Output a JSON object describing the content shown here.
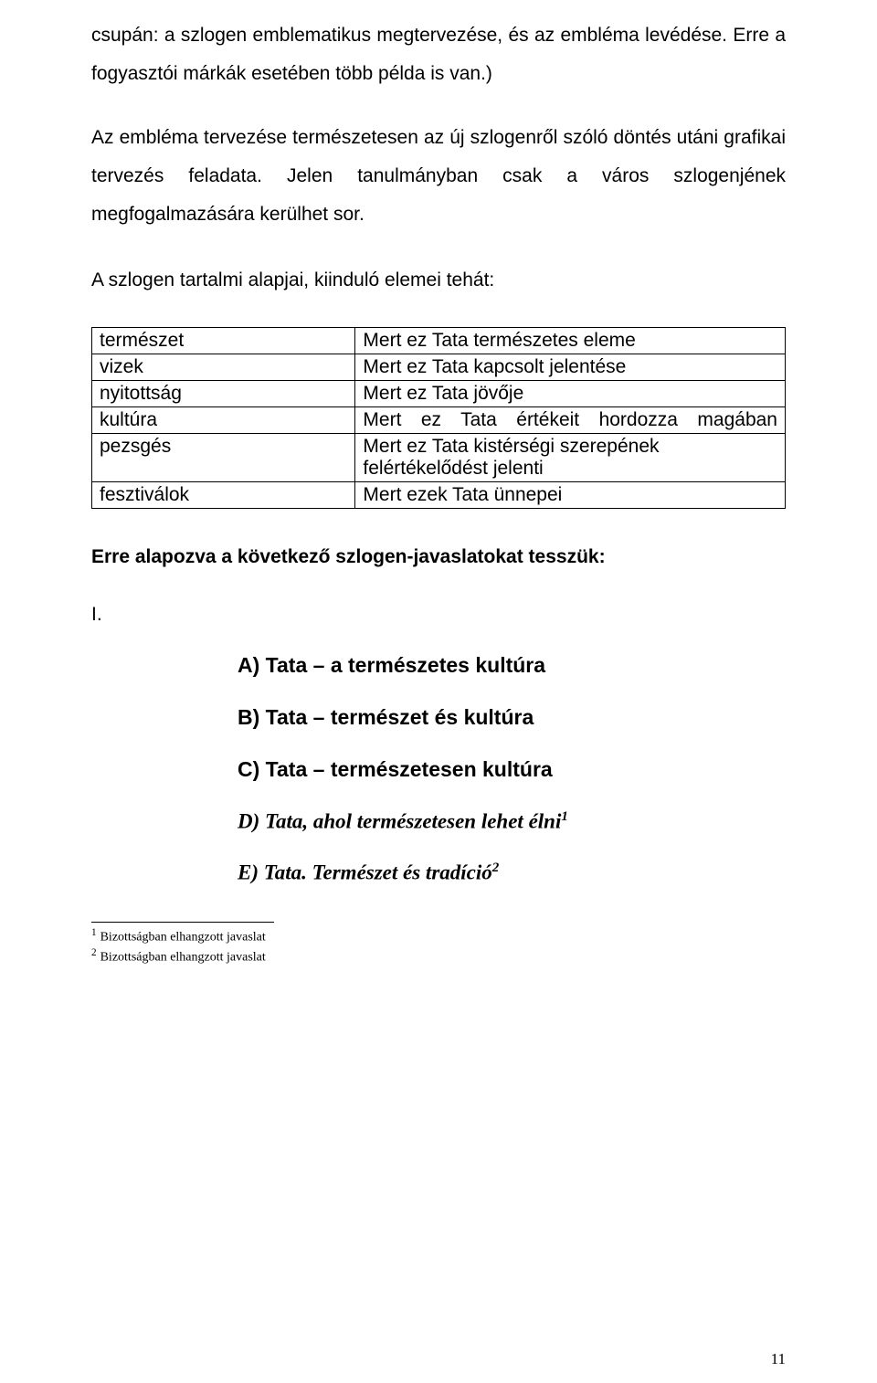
{
  "paragraphs": {
    "p1": "csupán: a szlogen emblematikus megtervezése, és az embléma levédése. Erre a fogyasztói márkák esetében több példa is van.)",
    "p2": "Az embléma tervezése természetesen az új szlogenről szóló döntés utáni grafikai tervezés feladata. Jelen tanulmányban csak a város szlogenjének megfogalmazására kerülhet sor.",
    "tableHeading": "A szlogen tartalmi alapjai, kiinduló elemei tehát:",
    "afterTable": "Erre alapozva a következő szlogen-javaslatokat tesszük:",
    "roman": "I."
  },
  "table": {
    "rows": [
      {
        "left": "természet",
        "right": "Mert ez Tata természetes eleme",
        "justify": false
      },
      {
        "left": "vizek",
        "right": "Mert ez Tata kapcsolt jelentése",
        "justify": false
      },
      {
        "left": "nyitottság",
        "right": "Mert ez Tata jövője",
        "justify": false
      },
      {
        "left": "kultúra",
        "right": "Mert ez Tata értékeit hordozza magában",
        "justify": true
      },
      {
        "left": "pezsgés",
        "right": "Mert ez Tata kistérségi szerepének felértékelődést jelenti",
        "justify": false
      },
      {
        "left": "fesztiválok",
        "right": "Mert ezek Tata ünnepei",
        "justify": false
      }
    ]
  },
  "slogans": {
    "a": "A) Tata – a természetes kultúra",
    "b": "B) Tata – természet és kultúra",
    "c": "C) Tata – természetesen kultúra",
    "d_text": "D) Tata, ahol természetesen lehet élni",
    "d_sup": "1",
    "e_text": "E) Tata. Természet és tradíció",
    "e_sup": "2"
  },
  "footnotes": {
    "f1_num": "1",
    "f1_text": "Bizottságban elhangzott javaslat",
    "f2_num": "2",
    "f2_text": "Bizottságban elhangzott javaslat"
  },
  "pageNumber": "11"
}
